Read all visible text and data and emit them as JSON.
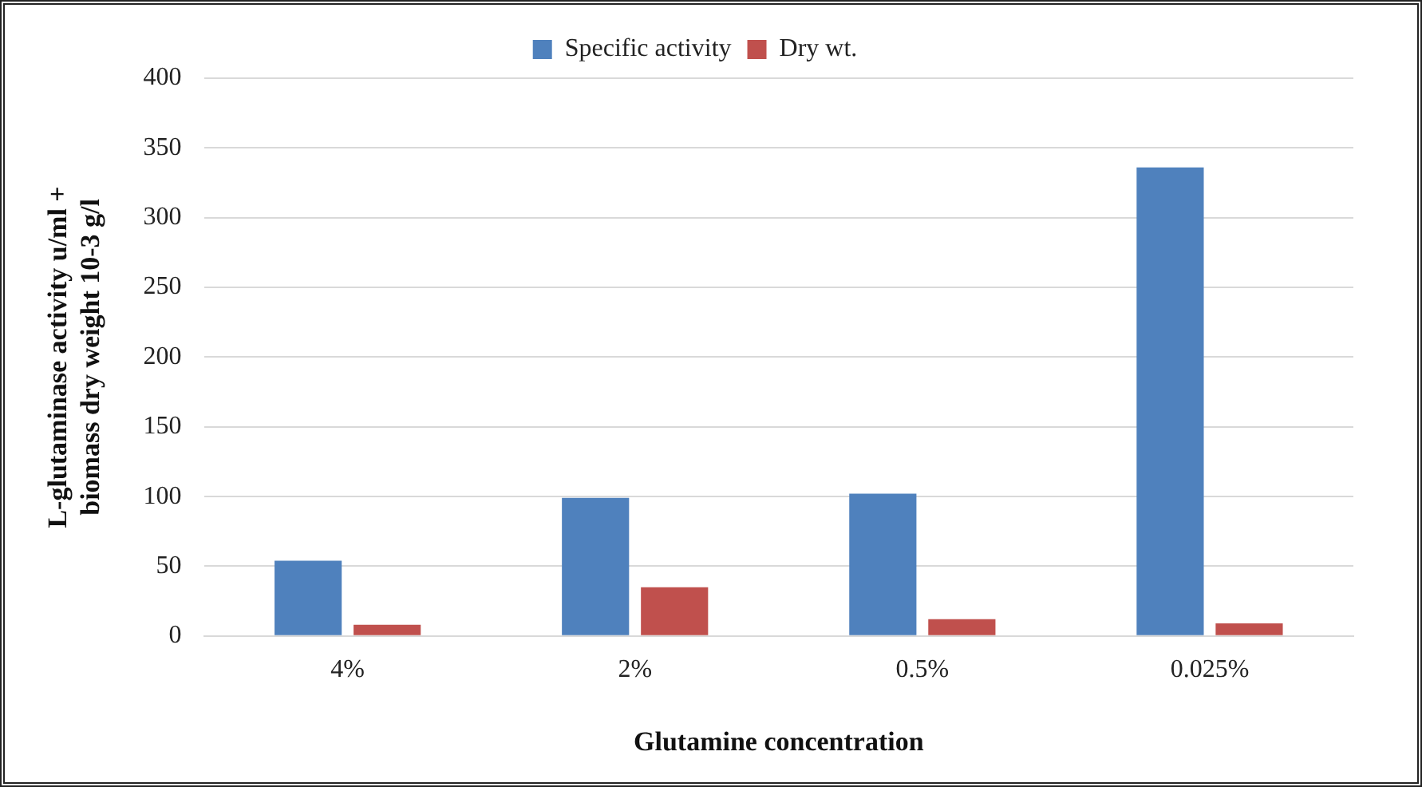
{
  "chart_data": {
    "type": "bar",
    "xlabel": "Glutamine concentration",
    "ylabel": "L-glutaminase activity u/ml + biomass dry weight 10-3 g/l",
    "categories": [
      "4%",
      "2%",
      "0.5%",
      "0.025%"
    ],
    "series": [
      {
        "name": "Specific activity",
        "color": "#4f81bd",
        "values": [
          54,
          99,
          102,
          336
        ]
      },
      {
        "name": "Dry wt.",
        "color": "#c0504d",
        "values": [
          8,
          35,
          12,
          9
        ]
      }
    ],
    "ylim": [
      0,
      400
    ],
    "yticks": [
      0,
      50,
      100,
      150,
      200,
      250,
      300,
      350,
      400
    ],
    "grid": "y",
    "legend": "top"
  }
}
